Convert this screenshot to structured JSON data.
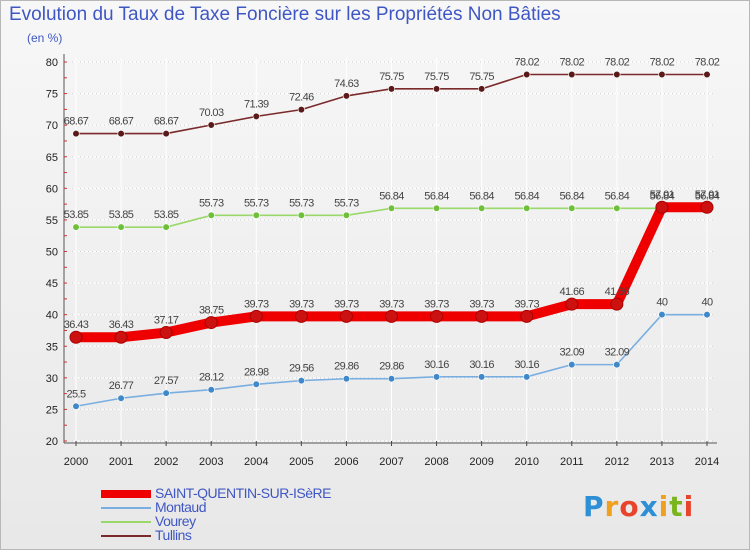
{
  "title": "Evolution du Taux de Taxe Foncière sur les Propriétés Non Bâties",
  "unit_label": "(en %)",
  "logo": {
    "text": "Proxiti",
    "letters": [
      "P",
      "r",
      "o",
      "x",
      "i",
      "t",
      "i"
    ],
    "colors": [
      "#2d8fd5",
      "#f0a020",
      "#e8442c",
      "#2d8fd5",
      "#f0a020",
      "#7ab51d",
      "#e8442c"
    ]
  },
  "chart_data": {
    "type": "line",
    "title": "Evolution du Taux de Taxe Foncière sur les Propriétés Non Bâties",
    "xlabel": "",
    "ylabel": "(en %)",
    "ylim": [
      20,
      80
    ],
    "y_ticks": [
      "20",
      "25",
      "30",
      "35",
      "40",
      "45",
      "50",
      "55",
      "60",
      "65",
      "70",
      "75",
      "80"
    ],
    "categories": [
      "2000",
      "2001",
      "2002",
      "2003",
      "2004",
      "2005",
      "2006",
      "2007",
      "2008",
      "2009",
      "2010",
      "2011",
      "2012",
      "2013",
      "2014"
    ],
    "grid": true,
    "legend_position": "bottom-left",
    "series": [
      {
        "name": "Tullins",
        "color": "#7a2a2a",
        "point_color": "#5a1a1a",
        "values": [
          68.67,
          68.67,
          68.67,
          70.03,
          71.39,
          72.46,
          74.63,
          75.75,
          75.75,
          75.75,
          78.02,
          78.02,
          78.02,
          78.02,
          78.02
        ],
        "labels": [
          "68.67",
          "68.67",
          "68.67",
          "70.03",
          "71.39",
          "72.46",
          "74.63",
          "75.75",
          "75.75",
          "75.75",
          "78.02",
          "78.02",
          "78.02",
          "78.02",
          "78.02"
        ]
      },
      {
        "name": "Vourey",
        "color": "#9ad86a",
        "point_color": "#6fbf3a",
        "values": [
          53.85,
          53.85,
          53.85,
          55.73,
          55.73,
          55.73,
          55.73,
          56.84,
          56.84,
          56.84,
          56.84,
          56.84,
          56.84,
          56.84,
          56.84
        ],
        "labels": [
          "53.85",
          "53.85",
          "53.85",
          "55.73",
          "55.73",
          "55.73",
          "55.73",
          "56.84",
          "56.84",
          "56.84",
          "56.84",
          "56.84",
          "56.84",
          "56.84",
          "56.84"
        ]
      },
      {
        "name": "Montaud",
        "color": "#7aaee0",
        "point_color": "#3f88c9",
        "values": [
          25.5,
          26.77,
          27.57,
          28.12,
          28.98,
          29.56,
          29.86,
          29.86,
          30.16,
          30.16,
          30.16,
          32.09,
          32.09,
          40,
          40
        ],
        "labels": [
          "25.5",
          "26.77",
          "27.57",
          "28.12",
          "28.98",
          "29.56",
          "29.86",
          "29.86",
          "30.16",
          "30.16",
          "30.16",
          "32.09",
          "32.09",
          "40",
          "40"
        ]
      },
      {
        "name": "SAINT-QUENTIN-SUR-ISèRE",
        "color": "#ee0000",
        "point_color": "#cc1111",
        "values": [
          36.43,
          36.43,
          37.17,
          38.75,
          39.73,
          39.73,
          39.73,
          39.73,
          39.73,
          39.73,
          39.73,
          41.66,
          41.66,
          57.01,
          57.01
        ],
        "labels": [
          "36.43",
          "36.43",
          "37.17",
          "38.75",
          "39.73",
          "39.73",
          "39.73",
          "39.73",
          "39.73",
          "39.73",
          "39.73",
          "41.66",
          "41.66",
          "57.01",
          "57.01"
        ]
      }
    ],
    "legend_order": [
      "SAINT-QUENTIN-SUR-ISèRE",
      "Montaud",
      "Vourey",
      "Tullins"
    ]
  }
}
